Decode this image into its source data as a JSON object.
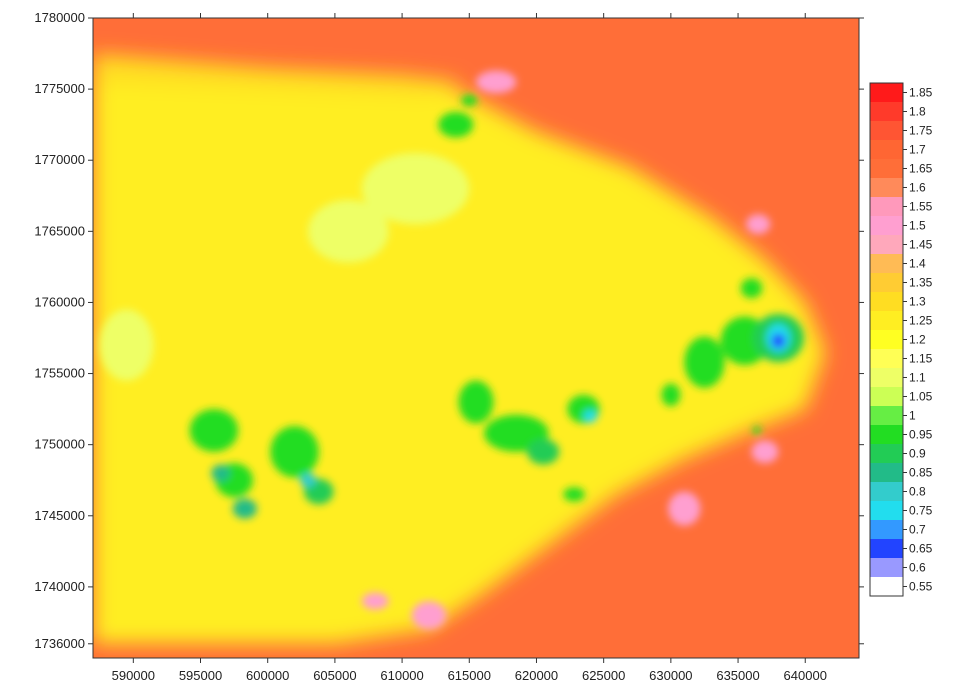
{
  "chart_data": {
    "type": "heatmap",
    "title": "",
    "xlabel": "",
    "ylabel": "",
    "xlim": [
      587000,
      644000
    ],
    "ylim": [
      1735000,
      1780000
    ],
    "x_ticks": [
      590000,
      595000,
      600000,
      605000,
      610000,
      615000,
      620000,
      625000,
      630000,
      635000,
      640000
    ],
    "x_tick_labels": [
      "590000",
      "595000",
      "600000",
      "605000",
      "610000",
      "615000",
      "620000",
      "625000",
      "630000",
      "635000",
      "640000"
    ],
    "y_ticks": [
      1736000,
      1740000,
      1745000,
      1750000,
      1755000,
      1760000,
      1765000,
      1770000,
      1775000,
      1780000
    ],
    "y_tick_labels": [
      "1736000",
      "1740000",
      "1745000",
      "1750000",
      "1755000",
      "1760000",
      "1765000",
      "1770000",
      "1775000",
      "1780000"
    ],
    "background_value": 1.65,
    "field_regions": [
      {
        "name": "inner-zone",
        "value": 1.25,
        "polygon": [
          [
            587000,
            1776000
          ],
          [
            596000,
            1775500
          ],
          [
            606000,
            1775000
          ],
          [
            614000,
            1775000
          ],
          [
            620000,
            1772000
          ],
          [
            627000,
            1769500
          ],
          [
            633000,
            1766000
          ],
          [
            637000,
            1763000
          ],
          [
            640000,
            1760000
          ],
          [
            641500,
            1756500
          ],
          [
            640000,
            1752500
          ],
          [
            636000,
            1751000
          ],
          [
            631000,
            1749000
          ],
          [
            626000,
            1746500
          ],
          [
            621000,
            1743000
          ],
          [
            616000,
            1739500
          ],
          [
            612000,
            1737000
          ],
          [
            605000,
            1736000
          ],
          [
            596000,
            1736000
          ],
          [
            587000,
            1736000
          ]
        ]
      },
      {
        "name": "upper-left-band",
        "value": 1.3,
        "polygon": [
          [
            587000,
            1777500
          ],
          [
            600000,
            1776500
          ],
          [
            610000,
            1776000
          ],
          [
            614500,
            1775500
          ],
          [
            612000,
            1774500
          ],
          [
            600000,
            1775000
          ],
          [
            587000,
            1775500
          ]
        ]
      }
    ],
    "blobs": [
      {
        "x": 596000,
        "y": 1751000,
        "rx": 1800,
        "ry": 1500,
        "value": 0.95
      },
      {
        "x": 597500,
        "y": 1747500,
        "rx": 1400,
        "ry": 1200,
        "value": 0.95
      },
      {
        "x": 598300,
        "y": 1745500,
        "rx": 900,
        "ry": 700,
        "value": 0.85
      },
      {
        "x": 596500,
        "y": 1748000,
        "rx": 700,
        "ry": 600,
        "value": 0.85
      },
      {
        "x": 602000,
        "y": 1749500,
        "rx": 1800,
        "ry": 1800,
        "value": 0.95
      },
      {
        "x": 603800,
        "y": 1746700,
        "rx": 1100,
        "ry": 900,
        "value": 0.9
      },
      {
        "x": 603000,
        "y": 1747500,
        "rx": 600,
        "ry": 500,
        "value": 0.8
      },
      {
        "x": 615500,
        "y": 1753000,
        "rx": 1300,
        "ry": 1500,
        "value": 0.95
      },
      {
        "x": 618500,
        "y": 1750800,
        "rx": 2400,
        "ry": 1300,
        "value": 0.95
      },
      {
        "x": 620500,
        "y": 1749500,
        "rx": 1200,
        "ry": 900,
        "value": 0.9
      },
      {
        "x": 623500,
        "y": 1752500,
        "rx": 1200,
        "ry": 1000,
        "value": 0.95
      },
      {
        "x": 624000,
        "y": 1752000,
        "rx": 500,
        "ry": 450,
        "value": 0.75
      },
      {
        "x": 622800,
        "y": 1746500,
        "rx": 800,
        "ry": 500,
        "value": 0.95
      },
      {
        "x": 630000,
        "y": 1753500,
        "rx": 700,
        "ry": 800,
        "value": 0.95
      },
      {
        "x": 632500,
        "y": 1755800,
        "rx": 1500,
        "ry": 1800,
        "value": 0.95
      },
      {
        "x": 635500,
        "y": 1757300,
        "rx": 1800,
        "ry": 1700,
        "value": 0.95
      },
      {
        "x": 638000,
        "y": 1757500,
        "rx": 1900,
        "ry": 1700,
        "value": 0.9
      },
      {
        "x": 638000,
        "y": 1757500,
        "rx": 900,
        "ry": 1000,
        "value": 0.75
      },
      {
        "x": 638000,
        "y": 1757300,
        "rx": 500,
        "ry": 500,
        "value": 0.65
      },
      {
        "x": 636000,
        "y": 1761000,
        "rx": 800,
        "ry": 700,
        "value": 0.95
      },
      {
        "x": 636400,
        "y": 1751000,
        "rx": 300,
        "ry": 300,
        "value": 0.95
      },
      {
        "x": 614000,
        "y": 1772500,
        "rx": 1300,
        "ry": 900,
        "value": 0.95
      },
      {
        "x": 615000,
        "y": 1774200,
        "rx": 600,
        "ry": 400,
        "value": 0.95
      },
      {
        "x": 611000,
        "y": 1768000,
        "rx": 4000,
        "ry": 2500,
        "value": 1.12
      },
      {
        "x": 606000,
        "y": 1765000,
        "rx": 3000,
        "ry": 2200,
        "value": 1.12
      },
      {
        "x": 589500,
        "y": 1757000,
        "rx": 2000,
        "ry": 2500,
        "value": 1.12
      },
      {
        "x": 612000,
        "y": 1738000,
        "rx": 1300,
        "ry": 1000,
        "value": 1.5
      },
      {
        "x": 608000,
        "y": 1739000,
        "rx": 1000,
        "ry": 600,
        "value": 1.5
      },
      {
        "x": 617000,
        "y": 1775500,
        "rx": 1500,
        "ry": 800,
        "value": 1.5
      },
      {
        "x": 631000,
        "y": 1745500,
        "rx": 1200,
        "ry": 1200,
        "value": 1.5
      },
      {
        "x": 636500,
        "y": 1765500,
        "rx": 900,
        "ry": 700,
        "value": 1.5
      },
      {
        "x": 637000,
        "y": 1749500,
        "rx": 1000,
        "ry": 800,
        "value": 1.5
      }
    ],
    "colorbar": {
      "labels": [
        "1.85",
        "1.8",
        "1.75",
        "1.7",
        "1.65",
        "1.6",
        "1.55",
        "1.5",
        "1.45",
        "1.4",
        "1.35",
        "1.3",
        "1.25",
        "1.2",
        "1.15",
        "1.1",
        "1.05",
        "1",
        "0.95",
        "0.9",
        "0.85",
        "0.8",
        "0.75",
        "0.7",
        "0.65",
        "0.6",
        "0.55"
      ],
      "values": [
        1.85,
        1.8,
        1.75,
        1.7,
        1.65,
        1.6,
        1.55,
        1.5,
        1.45,
        1.4,
        1.35,
        1.3,
        1.25,
        1.2,
        1.15,
        1.1,
        1.05,
        1.0,
        0.95,
        0.9,
        0.85,
        0.8,
        0.75,
        0.7,
        0.65,
        0.6,
        0.55
      ],
      "colors": [
        "#ff1a1a",
        "#ff3a2a",
        "#ff5533",
        "#ff6633",
        "#ff6e38",
        "#ff8a5a",
        "#ff99bb",
        "#ff9fd0",
        "#ffa8bb",
        "#ffbb55",
        "#ffcc33",
        "#ffdd22",
        "#ffee22",
        "#ffff22",
        "#ffff55",
        "#eeff66",
        "#ccff55",
        "#66ee44",
        "#22dd22",
        "#22cc55",
        "#22bb88",
        "#33cccc",
        "#22ddee",
        "#3399ff",
        "#2244ff",
        "#9999ff",
        "#ffffff"
      ]
    }
  }
}
